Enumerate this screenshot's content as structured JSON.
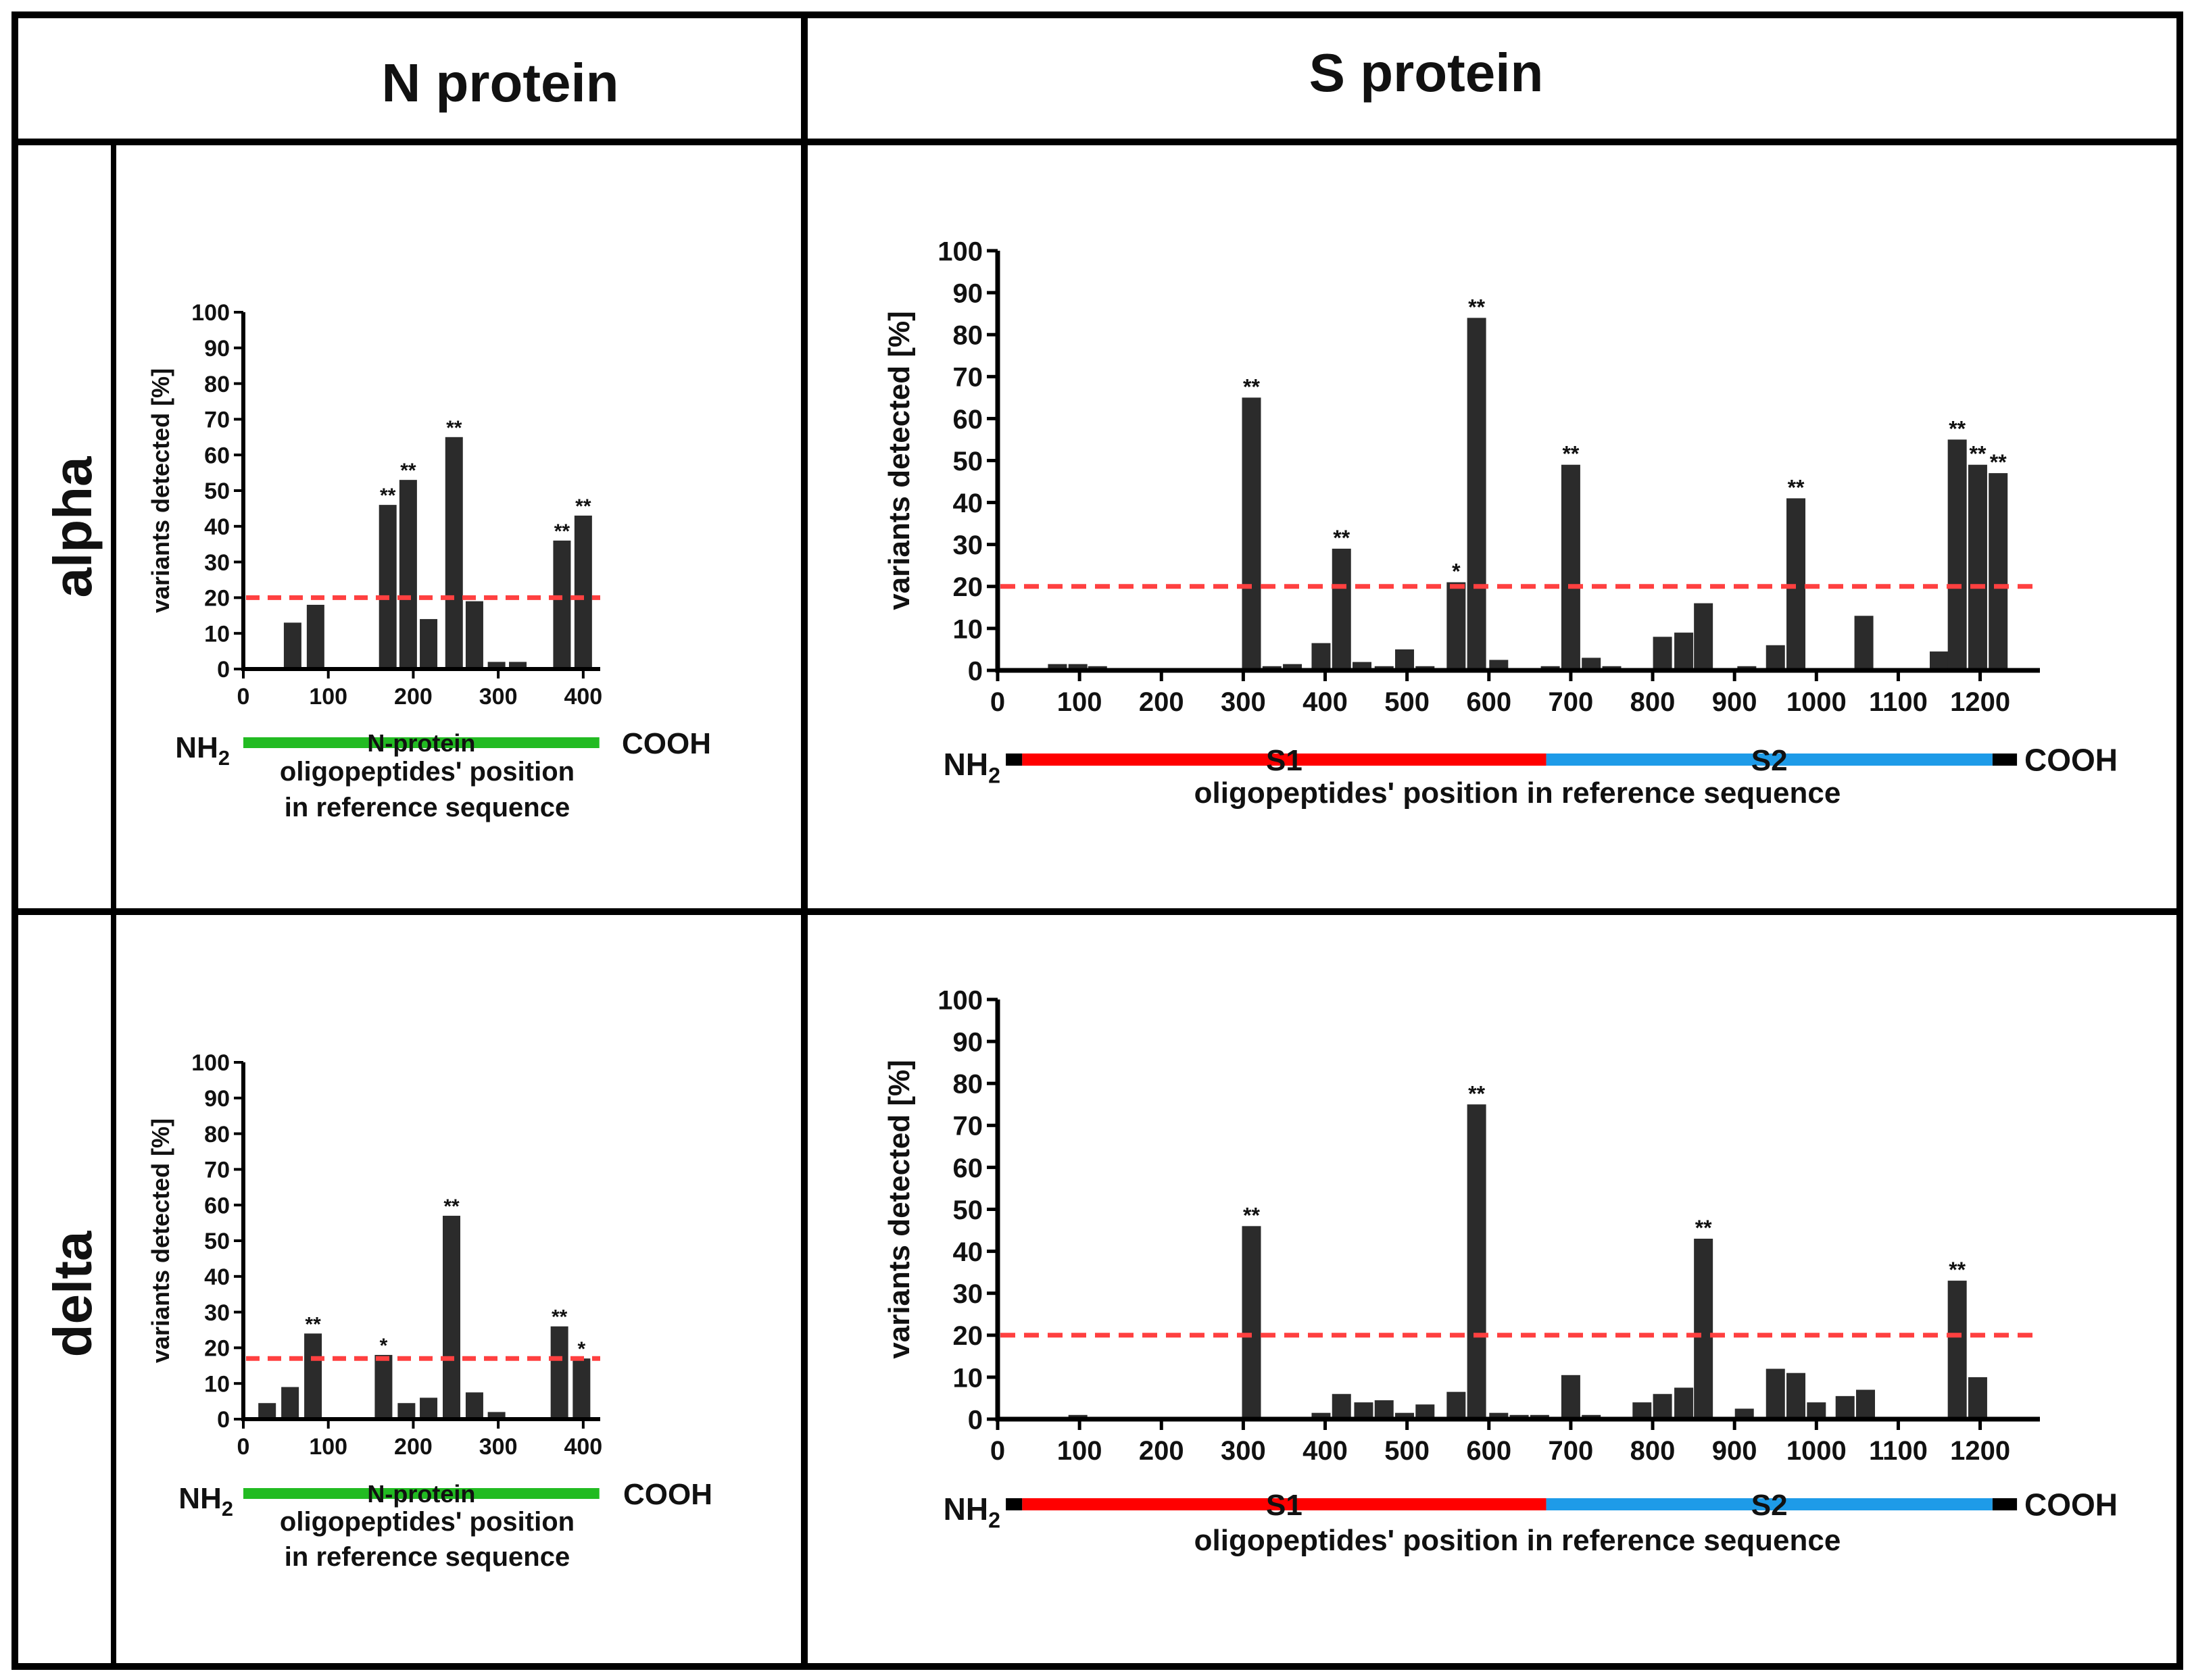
{
  "headers": {
    "n_protein": "N protein",
    "s_protein": "S protein"
  },
  "rows": [
    {
      "label": "alpha",
      "n_chart": 0,
      "s_chart": 1
    },
    {
      "label": "delta",
      "n_chart": 2,
      "s_chart": 3
    }
  ],
  "colors": {
    "bar": "#2b2b2b",
    "threshold": "#ff4040",
    "n_domain": "#22bb22",
    "s1": "#ff0000",
    "s2": "#1e9be8",
    "terminus": "#000000"
  },
  "chart_data": [
    {
      "id": "alpha-N",
      "type": "bar",
      "protein": "N",
      "ylabel": "variants detected [%]",
      "xlabel_lines": [
        "oligopeptides' position",
        "in reference sequence"
      ],
      "ylim": [
        0,
        100
      ],
      "xlim": [
        0,
        420
      ],
      "yticks": [
        0,
        10,
        20,
        30,
        40,
        50,
        60,
        70,
        80,
        90,
        100
      ],
      "xticks": [
        0,
        100,
        200,
        300,
        400
      ],
      "threshold": 20,
      "domains": [
        {
          "name": "N-protein",
          "start": 0,
          "end": 419,
          "color": "#22bb22"
        }
      ],
      "nterm": "NH",
      "nterm_sub": "2",
      "cterm": "COOH",
      "bars": [
        {
          "x": 58,
          "y": 13,
          "label": ""
        },
        {
          "x": 85,
          "y": 18,
          "label": ""
        },
        {
          "x": 170,
          "y": 46,
          "label": "**"
        },
        {
          "x": 194,
          "y": 53,
          "label": "**"
        },
        {
          "x": 218,
          "y": 14,
          "label": ""
        },
        {
          "x": 248,
          "y": 65,
          "label": "**"
        },
        {
          "x": 272,
          "y": 19,
          "label": ""
        },
        {
          "x": 298,
          "y": 2,
          "label": ""
        },
        {
          "x": 323,
          "y": 2,
          "label": ""
        },
        {
          "x": 375,
          "y": 36,
          "label": "**"
        },
        {
          "x": 400,
          "y": 43,
          "label": "**"
        }
      ]
    },
    {
      "id": "alpha-S",
      "type": "bar",
      "protein": "S",
      "ylabel": "variants detected [%]",
      "xlabel_lines": [
        "oligopeptides' position in reference sequence"
      ],
      "ylim": [
        0,
        100
      ],
      "xlim": [
        0,
        1273
      ],
      "yticks": [
        0,
        10,
        20,
        30,
        40,
        50,
        60,
        70,
        80,
        90,
        100
      ],
      "xticks": [
        0,
        100,
        200,
        300,
        400,
        500,
        600,
        700,
        800,
        900,
        1000,
        1100,
        1200
      ],
      "threshold": 20,
      "domains": [
        {
          "name": "S1",
          "start": 30,
          "end": 670,
          "color": "#ff0000"
        },
        {
          "name": "S2",
          "start": 670,
          "end": 1215,
          "color": "#1e9be8"
        }
      ],
      "termini_caps": [
        [
          10,
          30
        ],
        [
          1215,
          1245
        ]
      ],
      "nterm": "NH",
      "nterm_sub": "2",
      "cterm": "COOH",
      "bars": [
        {
          "x": 73,
          "y": 1.5,
          "label": ""
        },
        {
          "x": 98,
          "y": 1.5,
          "label": ""
        },
        {
          "x": 122,
          "y": 1,
          "label": ""
        },
        {
          "x": 310,
          "y": 65,
          "label": "**"
        },
        {
          "x": 335,
          "y": 1,
          "label": ""
        },
        {
          "x": 360,
          "y": 1.5,
          "label": ""
        },
        {
          "x": 395,
          "y": 6.5,
          "label": ""
        },
        {
          "x": 420,
          "y": 29,
          "label": "**"
        },
        {
          "x": 445,
          "y": 2,
          "label": ""
        },
        {
          "x": 472,
          "y": 1,
          "label": ""
        },
        {
          "x": 497,
          "y": 5,
          "label": ""
        },
        {
          "x": 522,
          "y": 1,
          "label": ""
        },
        {
          "x": 560,
          "y": 21,
          "label": "*"
        },
        {
          "x": 585,
          "y": 84,
          "label": "**"
        },
        {
          "x": 612,
          "y": 2.5,
          "label": ""
        },
        {
          "x": 675,
          "y": 1,
          "label": ""
        },
        {
          "x": 700,
          "y": 49,
          "label": "**"
        },
        {
          "x": 725,
          "y": 3,
          "label": ""
        },
        {
          "x": 750,
          "y": 1,
          "label": ""
        },
        {
          "x": 812,
          "y": 8,
          "label": ""
        },
        {
          "x": 838,
          "y": 9,
          "label": ""
        },
        {
          "x": 862,
          "y": 16,
          "label": ""
        },
        {
          "x": 915,
          "y": 1,
          "label": ""
        },
        {
          "x": 950,
          "y": 6,
          "label": ""
        },
        {
          "x": 975,
          "y": 41,
          "label": "**"
        },
        {
          "x": 1058,
          "y": 13,
          "label": ""
        },
        {
          "x": 1150,
          "y": 4.5,
          "label": ""
        },
        {
          "x": 1172,
          "y": 55,
          "label": "**"
        },
        {
          "x": 1197,
          "y": 49,
          "label": "**"
        },
        {
          "x": 1222,
          "y": 47,
          "label": "**"
        }
      ]
    },
    {
      "id": "delta-N",
      "type": "bar",
      "protein": "N",
      "ylabel": "variants detected [%]",
      "xlabel_lines": [
        "oligopeptides' position",
        "in reference sequence"
      ],
      "ylim": [
        0,
        100
      ],
      "xlim": [
        0,
        420
      ],
      "yticks": [
        0,
        10,
        20,
        30,
        40,
        50,
        60,
        70,
        80,
        90,
        100
      ],
      "xticks": [
        0,
        100,
        200,
        300,
        400
      ],
      "threshold": 17,
      "domains": [
        {
          "name": "N-protein",
          "start": 0,
          "end": 419,
          "color": "#22bb22"
        }
      ],
      "nterm": "NH",
      "nterm_sub": "2",
      "cterm": "COOH",
      "bars": [
        {
          "x": 28,
          "y": 4.5,
          "label": ""
        },
        {
          "x": 55,
          "y": 9,
          "label": ""
        },
        {
          "x": 82,
          "y": 24,
          "label": "**"
        },
        {
          "x": 165,
          "y": 18,
          "label": "*"
        },
        {
          "x": 192,
          "y": 4.5,
          "label": ""
        },
        {
          "x": 218,
          "y": 6,
          "label": ""
        },
        {
          "x": 245,
          "y": 57,
          "label": "**"
        },
        {
          "x": 272,
          "y": 7.5,
          "label": ""
        },
        {
          "x": 298,
          "y": 2,
          "label": ""
        },
        {
          "x": 372,
          "y": 26,
          "label": "**"
        },
        {
          "x": 398,
          "y": 17,
          "label": "*"
        }
      ]
    },
    {
      "id": "delta-S",
      "type": "bar",
      "protein": "S",
      "ylabel": "variants detected [%]",
      "xlabel_lines": [
        "oligopeptides' position in reference sequence"
      ],
      "ylim": [
        0,
        100
      ],
      "xlim": [
        0,
        1273
      ],
      "yticks": [
        0,
        10,
        20,
        30,
        40,
        50,
        60,
        70,
        80,
        90,
        100
      ],
      "xticks": [
        0,
        100,
        200,
        300,
        400,
        500,
        600,
        700,
        800,
        900,
        1000,
        1100,
        1200
      ],
      "threshold": 20,
      "domains": [
        {
          "name": "S1",
          "start": 30,
          "end": 670,
          "color": "#ff0000"
        },
        {
          "name": "S2",
          "start": 670,
          "end": 1215,
          "color": "#1e9be8"
        }
      ],
      "termini_caps": [
        [
          10,
          30
        ],
        [
          1215,
          1245
        ]
      ],
      "nterm": "NH",
      "nterm_sub": "2",
      "cterm": "COOH",
      "bars": [
        {
          "x": 98,
          "y": 1,
          "label": ""
        },
        {
          "x": 310,
          "y": 46,
          "label": "**"
        },
        {
          "x": 395,
          "y": 1.5,
          "label": ""
        },
        {
          "x": 420,
          "y": 6,
          "label": ""
        },
        {
          "x": 447,
          "y": 4,
          "label": ""
        },
        {
          "x": 472,
          "y": 4.5,
          "label": ""
        },
        {
          "x": 497,
          "y": 1.5,
          "label": ""
        },
        {
          "x": 522,
          "y": 3.5,
          "label": ""
        },
        {
          "x": 560,
          "y": 6.5,
          "label": ""
        },
        {
          "x": 585,
          "y": 75,
          "label": "**"
        },
        {
          "x": 612,
          "y": 1.5,
          "label": ""
        },
        {
          "x": 637,
          "y": 1,
          "label": ""
        },
        {
          "x": 662,
          "y": 1,
          "label": ""
        },
        {
          "x": 700,
          "y": 10.5,
          "label": ""
        },
        {
          "x": 725,
          "y": 1,
          "label": ""
        },
        {
          "x": 787,
          "y": 4,
          "label": ""
        },
        {
          "x": 812,
          "y": 6,
          "label": ""
        },
        {
          "x": 838,
          "y": 7.5,
          "label": ""
        },
        {
          "x": 862,
          "y": 43,
          "label": "**"
        },
        {
          "x": 912,
          "y": 2.5,
          "label": ""
        },
        {
          "x": 950,
          "y": 12,
          "label": ""
        },
        {
          "x": 975,
          "y": 11,
          "label": ""
        },
        {
          "x": 1000,
          "y": 4,
          "label": ""
        },
        {
          "x": 1035,
          "y": 5.5,
          "label": ""
        },
        {
          "x": 1060,
          "y": 7,
          "label": ""
        },
        {
          "x": 1172,
          "y": 33,
          "label": "**"
        },
        {
          "x": 1197,
          "y": 10,
          "label": ""
        }
      ]
    }
  ]
}
